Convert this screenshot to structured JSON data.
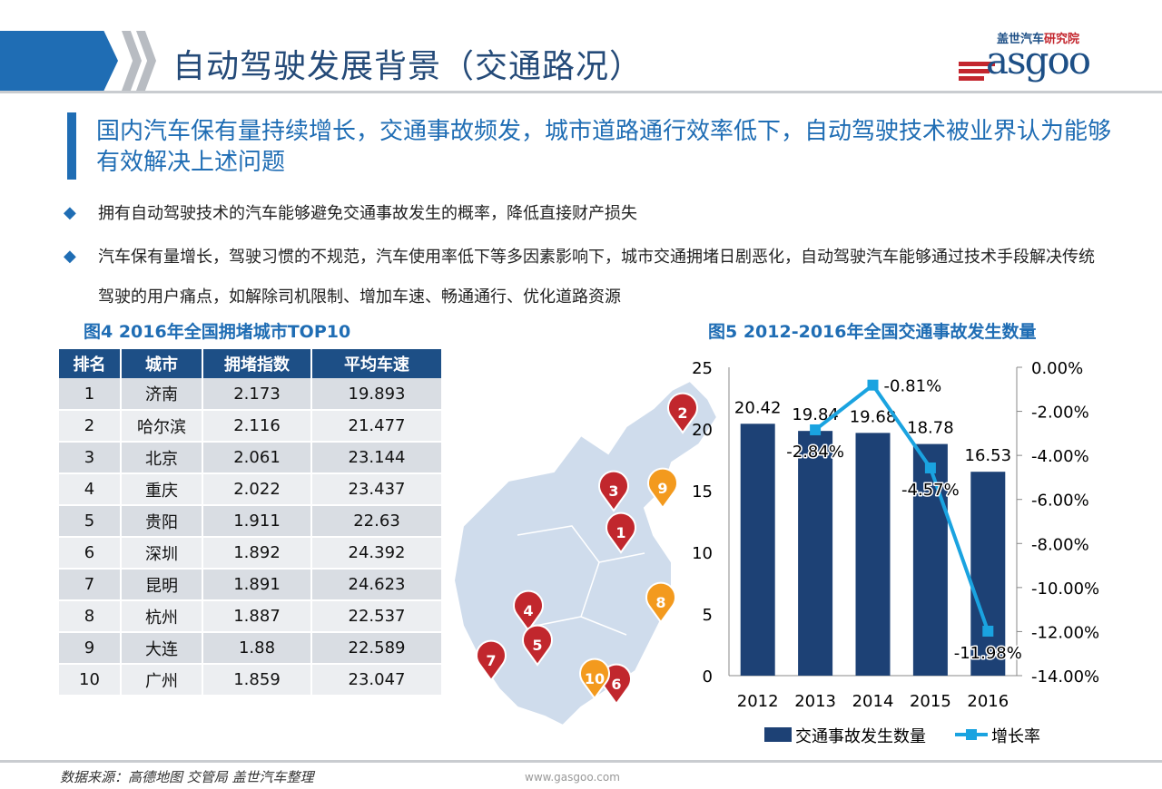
{
  "header": {
    "title": "自动驾驶发展背景（交通路况）",
    "logo_cn": "盖世汽车",
    "logo_cn_red": "研究院",
    "logo_en": "Gasgoo"
  },
  "headline": "国内汽车保有量持续增长，交通事故频发，城市道路通行效率低下，自动驾驶技术被业界认为能够有效解决上述问题",
  "bullets": [
    "拥有自动驾驶技术的汽车能够避免交通事故发生的概率，降低直接财产损失",
    "汽车保有量增长，驾驶习惯的不规范，汽车使用率低下等多因素影响下，城市交通拥堵日剧恶化，自动驾驶汽车能够通过技术手段解决传统驾驶的用户痛点，如解除司机限制、增加车速、畅通通行、优化道路资源"
  ],
  "bullet_icon": "diamond-icon",
  "fig4": {
    "title": "图4  2016年全国拥堵城市TOP10",
    "columns": [
      "排名",
      "城市",
      "拥堵指数",
      "平均车速"
    ],
    "rows": [
      [
        "1",
        "济南",
        "2.173",
        "19.893"
      ],
      [
        "2",
        "哈尔滨",
        "2.116",
        "21.477"
      ],
      [
        "3",
        "北京",
        "2.061",
        "23.144"
      ],
      [
        "4",
        "重庆",
        "2.022",
        "23.437"
      ],
      [
        "5",
        "贵阳",
        "1.911",
        "22.63"
      ],
      [
        "6",
        "深圳",
        "1.892",
        "24.392"
      ],
      [
        "7",
        "昆明",
        "1.891",
        "24.623"
      ],
      [
        "8",
        "杭州",
        "1.887",
        "22.537"
      ],
      [
        "9",
        "大连",
        "1.88",
        "22.589"
      ],
      [
        "10",
        "广州",
        "1.859",
        "23.047"
      ]
    ],
    "map_markers": [
      {
        "label": "1",
        "color": "#c1272d"
      },
      {
        "label": "2",
        "color": "#c1272d"
      },
      {
        "label": "3",
        "color": "#c1272d"
      },
      {
        "label": "4",
        "color": "#c1272d"
      },
      {
        "label": "5",
        "color": "#c1272d"
      },
      {
        "label": "6",
        "color": "#c1272d"
      },
      {
        "label": "7",
        "color": "#c1272d"
      },
      {
        "label": "8",
        "color": "#f39a1e"
      },
      {
        "label": "9",
        "color": "#f39a1e"
      },
      {
        "label": "10",
        "color": "#f39a1e"
      }
    ]
  },
  "chart_data": {
    "type": "bar",
    "title": "图5  2012-2016年全国交通事故发生数量",
    "categories": [
      "2012",
      "2013",
      "2014",
      "2015",
      "2016"
    ],
    "series": [
      {
        "name": "交通事故发生数量",
        "type": "bar",
        "axis": "left",
        "color": "#1d4175",
        "values": [
          20.42,
          19.84,
          19.68,
          18.78,
          16.53
        ],
        "labels": [
          "20.42",
          "19.84",
          "19.68",
          "18.78",
          "16.53"
        ]
      },
      {
        "name": "增长率",
        "type": "line",
        "axis": "right",
        "color": "#1aa3e0",
        "x": [
          "2013",
          "2014",
          "2015",
          "2016"
        ],
        "values": [
          -2.84,
          -0.81,
          -4.57,
          -11.98
        ],
        "labels": [
          "-2.84%",
          "-0.81%",
          "-4.57%",
          "-11.98%"
        ]
      }
    ],
    "ylim": [
      0,
      25
    ],
    "yticks": [
      "0",
      "5",
      "10",
      "15",
      "20",
      "25"
    ],
    "y2lim": [
      -14,
      0
    ],
    "y2ticks": [
      "0.00%",
      "-2.00%",
      "-4.00%",
      "-6.00%",
      "-8.00%",
      "-10.00%",
      "-12.00%",
      "-14.00%"
    ],
    "grid": false,
    "legend": "bottom"
  },
  "footer": {
    "source": "数据来源：高德地图  交管局  盖世汽车整理",
    "url": "www.gasgoo.com"
  }
}
